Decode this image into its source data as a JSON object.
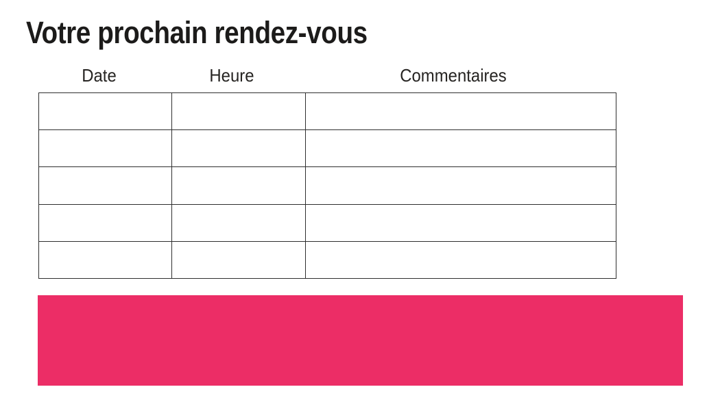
{
  "page": {
    "title": "Votre prochain rendez-vous",
    "background": "#ffffff"
  },
  "table": {
    "headers": [
      "Date",
      "Heure",
      "Commentaires"
    ],
    "row_count": 5,
    "rows": [
      [
        "",
        "",
        ""
      ],
      [
        "",
        "",
        ""
      ],
      [
        "",
        "",
        ""
      ],
      [
        "",
        "",
        ""
      ],
      [
        "",
        "",
        ""
      ]
    ]
  },
  "banner": {
    "label": ""
  },
  "colors": {
    "accent_pink": "#EC2D66",
    "grid_line": "#2E2E2E",
    "text": "#1D1D1B"
  }
}
